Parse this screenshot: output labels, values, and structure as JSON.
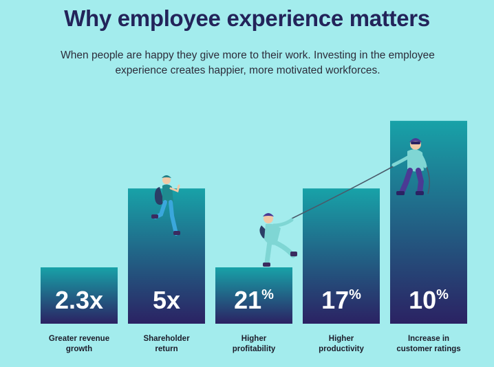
{
  "title": "Why employee experience matters",
  "subtitle_line1": "When people are happy they give more to their work. Investing in the employee",
  "subtitle_line2": "experience creates happier, more motivated workforces.",
  "colors": {
    "background": "#a3eced",
    "title": "#23245a",
    "bar_top": "#18a2a8",
    "bar_bottom": "#2b2263",
    "label_text": "#1c1c2a",
    "figure_teal": "#2ab5b9",
    "figure_purple": "#4b3a94"
  },
  "chart_data": {
    "type": "bar",
    "categories": [
      {
        "lines": [
          "Greater revenue",
          "growth"
        ]
      },
      {
        "lines": [
          "Shareholder",
          "return"
        ]
      },
      {
        "lines": [
          "Higher",
          "profitability"
        ]
      },
      {
        "lines": [
          "Higher",
          "productivity"
        ]
      },
      {
        "lines": [
          "Increase in",
          "customer ratings"
        ]
      }
    ],
    "values": [
      {
        "main": "2.3x",
        "suffix": ""
      },
      {
        "main": "5x",
        "suffix": ""
      },
      {
        "main": "21",
        "suffix": "%"
      },
      {
        "main": "17",
        "suffix": "%"
      },
      {
        "main": "10",
        "suffix": "%"
      }
    ],
    "bar_levels": [
      1,
      2.4,
      1,
      2.4,
      3.6
    ]
  },
  "illustrations": [
    "hiker-icon",
    "climber-pulling-icon",
    "climber-on-rope-icon",
    "rope-icon"
  ]
}
